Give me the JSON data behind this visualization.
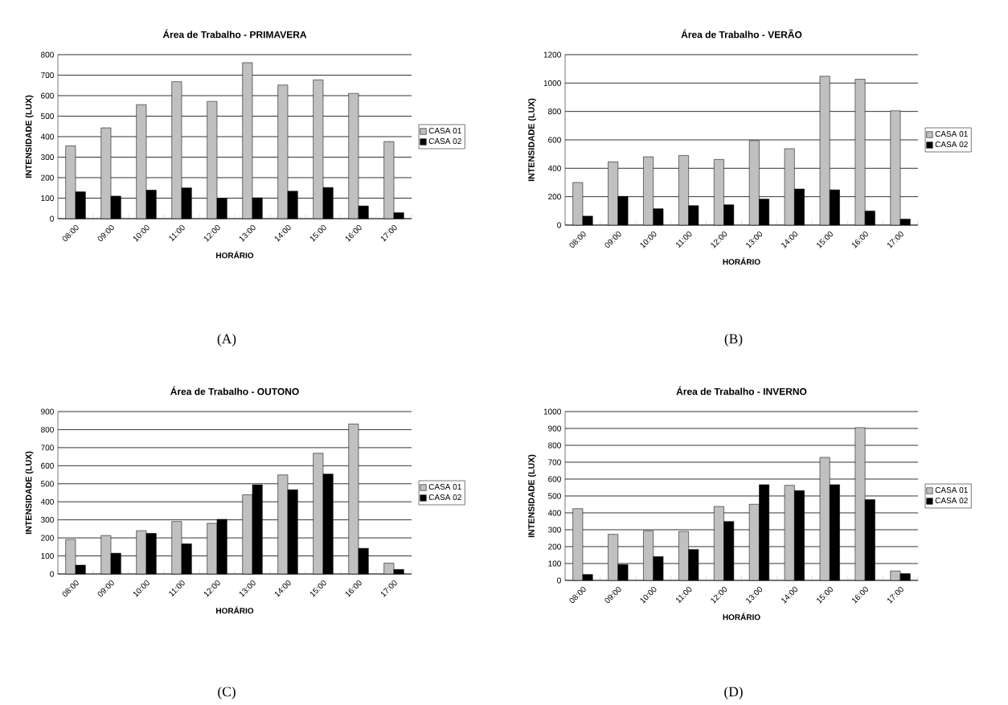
{
  "chart_data": [
    {
      "type": "bar",
      "title": "Área de Trabalho - PRIMAVERA",
      "xlabel": "HORÁRIO",
      "ylabel": "INTENSIDADE (LUX)",
      "categories": [
        "08:00",
        "09:00",
        "10:00",
        "11:00",
        "12:00",
        "13:00",
        "14:00",
        "15:00",
        "16:00",
        "17:00"
      ],
      "series": [
        {
          "name": "CASA 01",
          "color": "#c0c0c0",
          "values": [
            355,
            443,
            556,
            668,
            572,
            761,
            652,
            677,
            611,
            376
          ]
        },
        {
          "name": "CASA 02",
          "color": "#000000",
          "values": [
            131,
            110,
            139,
            150,
            100,
            102,
            134,
            152,
            62,
            29
          ]
        }
      ],
      "ylim": [
        0,
        800
      ],
      "yticks": [
        0,
        100,
        200,
        300,
        400,
        500,
        600,
        700,
        800
      ],
      "grid": "y",
      "legend": "right",
      "annotations": [
        "(A)"
      ]
    },
    {
      "type": "bar",
      "title": "Área de Trabalho - VERÃO",
      "xlabel": "HORÁRIO",
      "ylabel": "INTENSIDADE (LUX)",
      "categories": [
        "08:00",
        "09:00",
        "10:00",
        "11:00",
        "12:00",
        "13:00",
        "14:00",
        "15:00",
        "16:00",
        "17:00"
      ],
      "series": [
        {
          "name": "CASA 01",
          "color": "#c0c0c0",
          "values": [
            300,
            445,
            481,
            490,
            462,
            595,
            538,
            1048,
            1027,
            805
          ]
        },
        {
          "name": "CASA 02",
          "color": "#000000",
          "values": [
            63,
            202,
            115,
            137,
            143,
            183,
            254,
            248,
            99,
            42
          ]
        }
      ],
      "ylim": [
        0,
        1200
      ],
      "yticks": [
        0,
        200,
        400,
        600,
        800,
        1000,
        1200
      ],
      "grid": "y",
      "legend": "right",
      "annotations": [
        "(B)"
      ]
    },
    {
      "type": "bar",
      "title": "Área de Trabalho - OUTONO",
      "xlabel": "HORÁRIO",
      "ylabel": "INTENSIDADE (LUX)",
      "categories": [
        "08:00",
        "09:00",
        "10:00",
        "11:00",
        "12:00",
        "13:00",
        "14:00",
        "15:00",
        "16:00",
        "17:00"
      ],
      "series": [
        {
          "name": "CASA 01",
          "color": "#c0c0c0",
          "values": [
            191,
            213,
            240,
            291,
            281,
            439,
            549,
            669,
            831,
            60
          ]
        },
        {
          "name": "CASA 02",
          "color": "#000000",
          "values": [
            49,
            115,
            225,
            167,
            303,
            494,
            467,
            554,
            142,
            25
          ]
        }
      ],
      "ylim": [
        0,
        900
      ],
      "yticks": [
        0,
        100,
        200,
        300,
        400,
        500,
        600,
        700,
        800,
        900
      ],
      "grid": "y",
      "legend": "right",
      "annotations": [
        "(C)"
      ]
    },
    {
      "type": "bar",
      "title": "Área de Trabalho - INVERNO",
      "xlabel": "HORÁRIO",
      "ylabel": "INTENSIDADE (LUX)",
      "categories": [
        "08:00",
        "09:00",
        "10:00",
        "11:00",
        "12:00",
        "13:00",
        "14:00",
        "15:00",
        "16:00",
        "17:00"
      ],
      "series": [
        {
          "name": "CASA 01",
          "color": "#c0c0c0",
          "values": [
            425,
            273,
            294,
            290,
            438,
            451,
            563,
            729,
            905,
            56
          ]
        },
        {
          "name": "CASA 02",
          "color": "#000000",
          "values": [
            35,
            94,
            141,
            183,
            349,
            567,
            532,
            567,
            478,
            40
          ]
        }
      ],
      "ylim": [
        0,
        1000
      ],
      "yticks": [
        0,
        100,
        200,
        300,
        400,
        500,
        600,
        700,
        800,
        900,
        1000
      ],
      "grid": "y",
      "legend": "right",
      "annotations": [
        "(D)"
      ]
    }
  ]
}
